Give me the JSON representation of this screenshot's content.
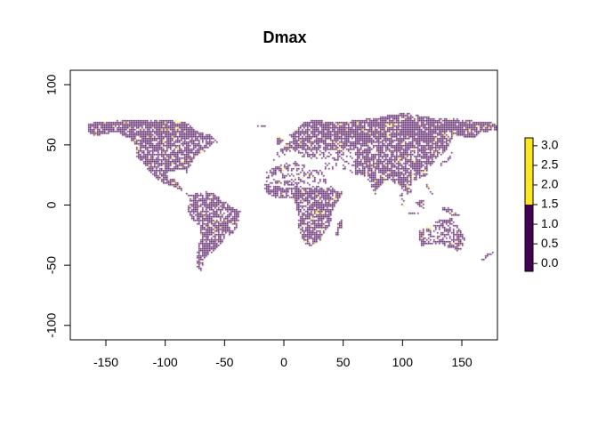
{
  "chart_data": {
    "type": "heatmap",
    "title": "Dmax",
    "xlabel": "",
    "ylabel": "",
    "xlim": [
      -180,
      180
    ],
    "ylim": [
      -112,
      112
    ],
    "x_ticks": [
      -150,
      -100,
      -50,
      0,
      50,
      100,
      150
    ],
    "y_ticks": [
      -100,
      -50,
      0,
      50,
      100
    ],
    "grid": false,
    "legend": {
      "position": "right",
      "ticks": [
        "0.0",
        "0.5",
        "1.0",
        "1.5",
        "2.0",
        "2.5",
        "3.0"
      ],
      "range": [
        -0.2,
        3.2
      ],
      "classes": [
        {
          "from": -0.2,
          "to": 1.5,
          "color": "#440154"
        },
        {
          "from": 1.5,
          "to": 3.2,
          "color": "#FDE725"
        }
      ]
    },
    "colors": {
      "low": "#440154",
      "high": "#FDE725",
      "na": "#ffffff"
    }
  }
}
